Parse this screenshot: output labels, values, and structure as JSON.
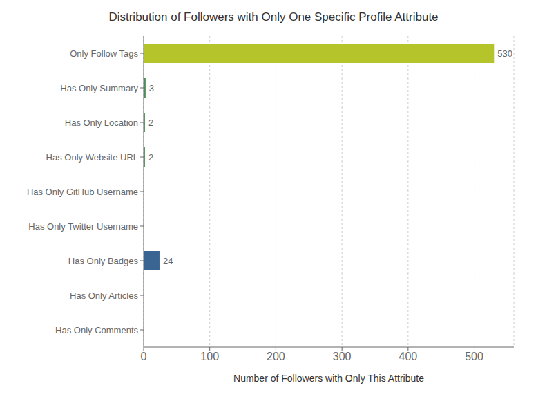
{
  "chart_data": {
    "type": "bar",
    "orientation": "horizontal",
    "title": "Distribution of Followers with Only One Specific Profile Attribute",
    "xlabel": "Number of Followers with Only This Attribute",
    "categories": [
      "Only Follow Tags",
      "Has Only Summary",
      "Has Only Location",
      "Has Only Website URL",
      "Has Only GitHub Username",
      "Has Only Twitter Username",
      "Has Only Badges",
      "Has Only Articles",
      "Has Only Comments"
    ],
    "values": [
      530,
      3,
      2,
      2,
      0,
      0,
      24,
      0,
      0
    ],
    "colors": [
      "#b5c42a",
      "#4e8c5a",
      "#4e8c5a",
      "#4e8c5a",
      "#4e8c5a",
      "#4e8c5a",
      "#3a6492",
      "#4e8c5a",
      "#4e8c5a"
    ],
    "xlim": [
      0,
      560
    ],
    "xticks": [
      0,
      100,
      200,
      300,
      400,
      500
    ],
    "grid": true,
    "data_labels": true
  }
}
